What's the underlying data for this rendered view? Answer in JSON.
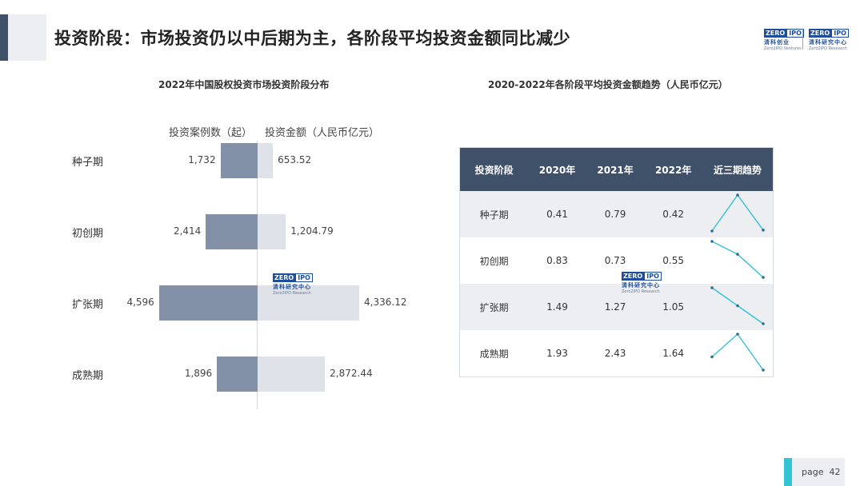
{
  "title": "投资阶段：市场投资仍以中后期为主，各阶段平均投资金额同比减少",
  "logos": {
    "left": {
      "zero": "ZERO",
      "ipo": "IPO",
      "cn": "清科创业",
      "en": "Zero2IPO Ventures"
    },
    "right": {
      "zero": "ZERO",
      "ipo": "IPO",
      "cn": "清科研究中心",
      "en": "Zero2IPO Research"
    }
  },
  "watermark": {
    "zero": "ZERO",
    "ipo": "IPO",
    "cn": "清科研究中心",
    "en": "Zero2IPO Research"
  },
  "chart_data": [
    {
      "type": "bar",
      "title": "2022年中国股权投资市场投资阶段分布",
      "orientation": "horizontal-butterfly",
      "categories": [
        "种子期",
        "初创期",
        "扩张期",
        "成熟期"
      ],
      "series": [
        {
          "name": "投资案例数（起）",
          "values": [
            1732,
            2414,
            4596,
            1896
          ],
          "labels": [
            "1,732",
            "2,414",
            "4,596",
            "1,896"
          ],
          "color": "#8391a8",
          "side": "left"
        },
        {
          "name": "投资金额（人民币亿元）",
          "values": [
            653.52,
            1204.79,
            4336.12,
            2872.44
          ],
          "labels": [
            "653.52",
            "1,204.79",
            "4,336.12",
            "2,872.44"
          ],
          "color": "#dfe2e9",
          "side": "right"
        }
      ]
    },
    {
      "type": "table",
      "title": "2020-2022年各阶段平均投资金额趋势（人民币亿元）",
      "header": {
        "stage": "投资阶段",
        "y2020": "2020年",
        "y2021": "2021年",
        "y2022": "2022年",
        "trend": "近三期趋势"
      },
      "rows": [
        {
          "stage": "种子期",
          "y2020": "0.41",
          "y2021": "0.79",
          "y2022": "0.42",
          "values": [
            0.41,
            0.79,
            0.42
          ]
        },
        {
          "stage": "初创期",
          "y2020": "0.83",
          "y2021": "0.73",
          "y2022": "0.55",
          "values": [
            0.83,
            0.73,
            0.55
          ]
        },
        {
          "stage": "扩张期",
          "y2020": "1.49",
          "y2021": "1.27",
          "y2022": "1.05",
          "values": [
            1.49,
            1.27,
            1.05
          ]
        },
        {
          "stage": "成熟期",
          "y2020": "1.93",
          "y2021": "2.43",
          "y2022": "1.64",
          "values": [
            1.93,
            2.43,
            1.64
          ]
        }
      ],
      "trend_color": "#33c3d3"
    }
  ],
  "footer": {
    "page_label": "page",
    "page_number": "42"
  }
}
